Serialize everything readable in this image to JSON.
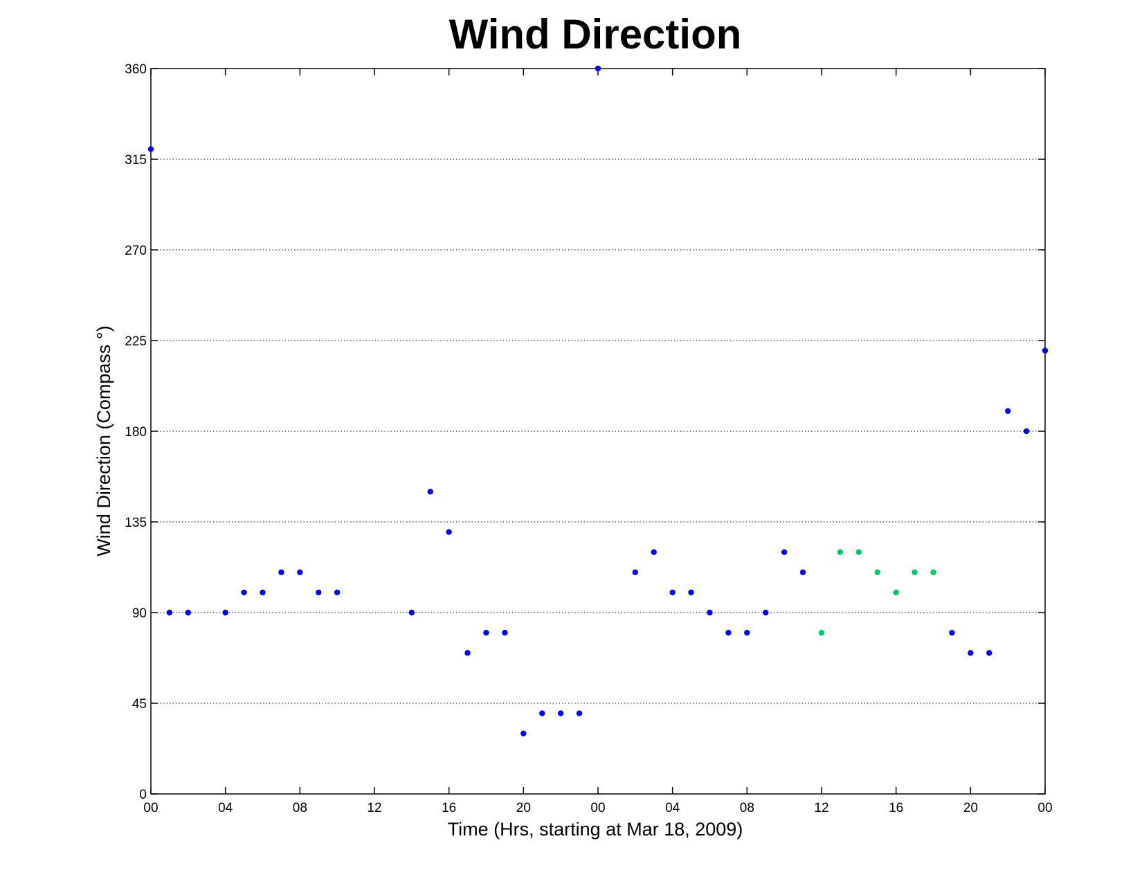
{
  "chart_data": {
    "type": "scatter",
    "title": "Wind Direction",
    "xlabel": "Time (Hrs, starting at Mar 18, 2009)",
    "ylabel": "Wind Direction (Compass  °)",
    "x_unit": "hours",
    "xlim": [
      0,
      48
    ],
    "ylim": [
      0,
      360
    ],
    "grid": "horizontal dotted",
    "x_ticks": [
      {
        "value": 0,
        "label": "00"
      },
      {
        "value": 4,
        "label": "04"
      },
      {
        "value": 8,
        "label": "08"
      },
      {
        "value": 12,
        "label": "12"
      },
      {
        "value": 16,
        "label": "16"
      },
      {
        "value": 20,
        "label": "20"
      },
      {
        "value": 24,
        "label": "00"
      },
      {
        "value": 28,
        "label": "04"
      },
      {
        "value": 32,
        "label": "08"
      },
      {
        "value": 36,
        "label": "12"
      },
      {
        "value": 40,
        "label": "16"
      },
      {
        "value": 44,
        "label": "20"
      },
      {
        "value": 48,
        "label": "00"
      }
    ],
    "y_ticks": [
      0,
      45,
      90,
      135,
      180,
      225,
      270,
      315,
      360
    ],
    "series": [
      {
        "color": "#0000ff",
        "points": [
          [
            0,
            320
          ],
          [
            1,
            90
          ],
          [
            2,
            90
          ],
          [
            4,
            90
          ],
          [
            5,
            100
          ],
          [
            6,
            100
          ],
          [
            7,
            110
          ],
          [
            8,
            110
          ],
          [
            9,
            100
          ],
          [
            10,
            100
          ],
          [
            14,
            90
          ],
          [
            15,
            150
          ],
          [
            16,
            130
          ],
          [
            17,
            70
          ],
          [
            18,
            80
          ],
          [
            19,
            80
          ],
          [
            20,
            30
          ],
          [
            21,
            40
          ],
          [
            22,
            40
          ],
          [
            23,
            40
          ],
          [
            24,
            360
          ],
          [
            26,
            110
          ],
          [
            27,
            120
          ],
          [
            28,
            100
          ],
          [
            29,
            100
          ],
          [
            30,
            90
          ],
          [
            31,
            80
          ],
          [
            32,
            80
          ],
          [
            33,
            90
          ],
          [
            34,
            120
          ],
          [
            35,
            110
          ],
          [
            43,
            80
          ],
          [
            44,
            70
          ],
          [
            45,
            70
          ],
          [
            46,
            190
          ],
          [
            47,
            180
          ],
          [
            48,
            220
          ]
        ]
      },
      {
        "color": "#00cc66",
        "points": [
          [
            36,
            80
          ],
          [
            37,
            120
          ],
          [
            38,
            120
          ],
          [
            39,
            110
          ],
          [
            40,
            100
          ],
          [
            41,
            110
          ],
          [
            42,
            110
          ]
        ]
      }
    ]
  }
}
